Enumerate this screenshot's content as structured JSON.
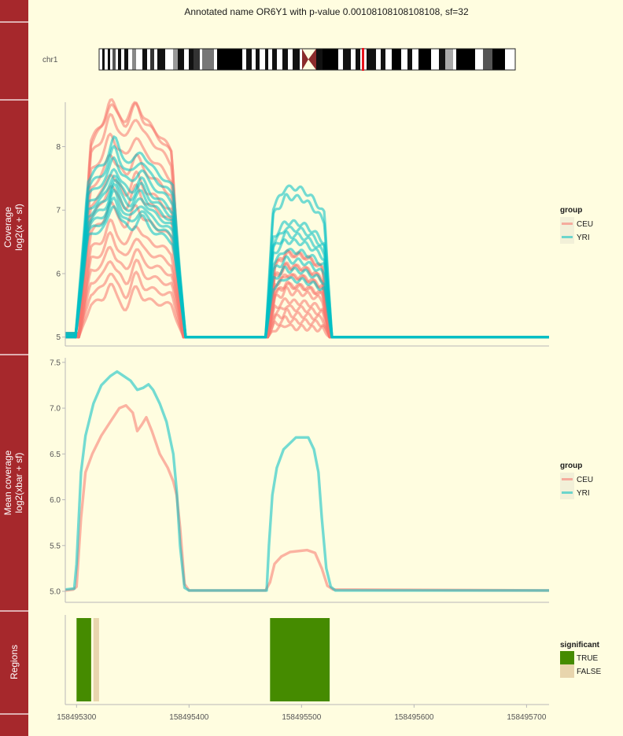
{
  "title": "Annotated name OR6Y1 with p-value 0.00108108108108108, sf=32",
  "ideogram": {
    "chromosome": "chr1",
    "highlight_color": "#e8141c",
    "centromere_color": "#8b2b2b"
  },
  "strips": {
    "coverage_line1": "Coverage",
    "coverage_line2": "log2(x + sf)",
    "mean_line1": "Mean coverage",
    "mean_line2": "log2(xbar + sf)",
    "regions": "Regions"
  },
  "colors": {
    "CEU": "#f8766d",
    "YRI": "#00bfc4",
    "TRUE": "#458b00",
    "FALSE": "#e8d5ad",
    "strip": "#a6282c",
    "background": "#fffde0"
  },
  "legends": {
    "coverage": {
      "title": "group",
      "items": [
        "CEU",
        "YRI"
      ]
    },
    "mean": {
      "title": "group",
      "items": [
        "CEU",
        "YRI"
      ]
    },
    "regions": {
      "title": "significant",
      "items": [
        "TRUE",
        "FALSE"
      ]
    }
  },
  "chart_data": [
    {
      "type": "line",
      "panel": "coverage",
      "ylabel": "Coverage log2(x + sf)",
      "xlim": [
        158495290,
        158495720
      ],
      "ylim": [
        4.86,
        8.7
      ],
      "yticks": [
        5,
        6,
        7,
        8
      ],
      "note": "many per-sample traces; each series has two humps: 158495300-158495400 and 158495470-158495530",
      "series": [
        {
          "name": "CEU",
          "hump1_peaks": [
            8.5,
            8.55,
            8.3,
            8.0,
            7.7,
            7.4,
            7.2,
            6.9,
            6.6,
            6.4,
            6.2,
            6.0,
            5.8,
            5.6
          ],
          "hump2_peaks": [
            6.3,
            6.1,
            5.95,
            5.8,
            5.7,
            5.55,
            5.45,
            5.35,
            5.25,
            5.15
          ]
        },
        {
          "name": "YRI",
          "hump1_peaks": [
            7.85,
            7.7,
            7.55,
            7.4,
            7.3,
            7.2,
            7.1,
            7.0,
            6.9,
            6.8
          ],
          "hump2_peaks": [
            7.35,
            7.2,
            6.8,
            6.7,
            6.6,
            6.5,
            6.35,
            6.2,
            6.05,
            5.9
          ]
        }
      ]
    },
    {
      "type": "line",
      "panel": "mean",
      "ylabel": "Mean coverage log2(xbar + sf)",
      "xlim": [
        158495290,
        158495720
      ],
      "ylim": [
        4.88,
        7.55
      ],
      "yticks": [
        5.0,
        5.5,
        6.0,
        6.5,
        7.0,
        7.5
      ],
      "series": [
        {
          "name": "CEU",
          "points": [
            [
              158495290,
              5.01
            ],
            [
              158495297,
              5.02
            ],
            [
              158495300,
              5.05
            ],
            [
              158495304,
              5.8
            ],
            [
              158495308,
              6.3
            ],
            [
              158495314,
              6.5
            ],
            [
              158495322,
              6.7
            ],
            [
              158495330,
              6.85
            ],
            [
              158495338,
              7.0
            ],
            [
              158495344,
              7.03
            ],
            [
              158495350,
              6.95
            ],
            [
              158495354,
              6.75
            ],
            [
              158495358,
              6.82
            ],
            [
              158495362,
              6.9
            ],
            [
              158495367,
              6.75
            ],
            [
              158495374,
              6.5
            ],
            [
              158495381,
              6.35
            ],
            [
              158495386,
              6.2
            ],
            [
              158495389,
              6.05
            ],
            [
              158495392,
              5.7
            ],
            [
              158495396,
              5.08
            ],
            [
              158495400,
              5.01
            ],
            [
              158495468,
              5.01
            ],
            [
              158495472,
              5.1
            ],
            [
              158495476,
              5.3
            ],
            [
              158495482,
              5.38
            ],
            [
              158495490,
              5.43
            ],
            [
              158495505,
              5.45
            ],
            [
              158495512,
              5.42
            ],
            [
              158495518,
              5.25
            ],
            [
              158495523,
              5.06
            ],
            [
              158495528,
              5.02
            ],
            [
              158495720,
              5.01
            ]
          ]
        },
        {
          "name": "YRI",
          "points": [
            [
              158495290,
              5.02
            ],
            [
              158495298,
              5.03
            ],
            [
              158495300,
              5.3
            ],
            [
              158495304,
              6.3
            ],
            [
              158495308,
              6.7
            ],
            [
              158495315,
              7.05
            ],
            [
              158495322,
              7.25
            ],
            [
              158495330,
              7.35
            ],
            [
              158495336,
              7.4
            ],
            [
              158495342,
              7.35
            ],
            [
              158495348,
              7.3
            ],
            [
              158495354,
              7.2
            ],
            [
              158495359,
              7.22
            ],
            [
              158495364,
              7.26
            ],
            [
              158495368,
              7.2
            ],
            [
              158495374,
              7.05
            ],
            [
              158495380,
              6.85
            ],
            [
              158495386,
              6.5
            ],
            [
              158495389,
              6.1
            ],
            [
              158495392,
              5.5
            ],
            [
              158495396,
              5.04
            ],
            [
              158495400,
              5.01
            ],
            [
              158495469,
              5.01
            ],
            [
              158495471,
              5.5
            ],
            [
              158495474,
              6.05
            ],
            [
              158495478,
              6.35
            ],
            [
              158495484,
              6.55
            ],
            [
              158495490,
              6.62
            ],
            [
              158495495,
              6.68
            ],
            [
              158495506,
              6.68
            ],
            [
              158495511,
              6.55
            ],
            [
              158495515,
              6.3
            ],
            [
              158495518,
              5.8
            ],
            [
              158495522,
              5.25
            ],
            [
              158495526,
              5.05
            ],
            [
              158495530,
              5.01
            ],
            [
              158495720,
              5.01
            ]
          ]
        }
      ]
    },
    {
      "type": "bar",
      "panel": "regions",
      "xlim": [
        158495290,
        158495720
      ],
      "xticks": [
        158495300,
        158495400,
        158495500,
        158495600,
        158495700
      ],
      "xtick_labels": [
        "158495300",
        "158495400",
        "158495500",
        "158495600",
        "158495700"
      ],
      "regions": [
        {
          "start": 158495300,
          "end": 158495313,
          "significant": "TRUE"
        },
        {
          "start": 158495315,
          "end": 158495320,
          "significant": "FALSE"
        },
        {
          "start": 158495472,
          "end": 158495525,
          "significant": "TRUE"
        }
      ]
    }
  ]
}
